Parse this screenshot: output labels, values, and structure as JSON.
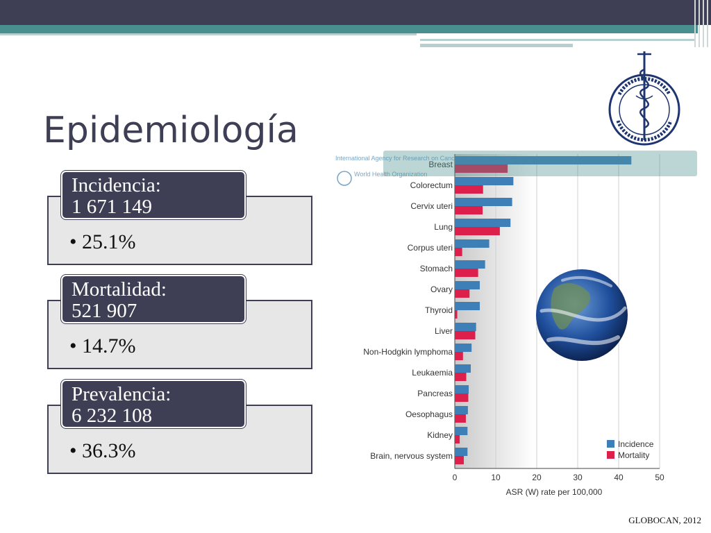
{
  "slide": {
    "title": "Epidemiología",
    "footer": "GLOBOCAN, 2012"
  },
  "logo": {
    "text": "INSTITUTO NACIONAL DE CANCEROLOGIA México"
  },
  "blocks": [
    {
      "label": "Incidencia:",
      "value": "1 671 149",
      "bullet": "•",
      "percent": "25.1%"
    },
    {
      "label": "Mortalidad:",
      "value": "521 907",
      "bullet": "•",
      "percent": "14.7%"
    },
    {
      "label": "Prevalencia:",
      "value": "6 232 108",
      "bullet": "•",
      "percent": "36.3%"
    }
  ],
  "chart_header": {
    "agency": "International Agency for Research on Cancer",
    "who": "World Health Organization"
  },
  "colors": {
    "incidence": "#3f7fb8",
    "mortality": "#dc1f4b",
    "accent": "#3e3f54",
    "teal": "#4a8f8f"
  },
  "chart_data": {
    "type": "bar",
    "orientation": "horizontal",
    "categories": [
      "Breast",
      "Colorectum",
      "Cervix uteri",
      "Lung",
      "Corpus uteri",
      "Stomach",
      "Ovary",
      "Thyroid",
      "Liver",
      "Non-Hodgkin lymphoma",
      "Leukaemia",
      "Pancreas",
      "Oesophagus",
      "Kidney",
      "Brain, nervous system"
    ],
    "series": [
      {
        "name": "Incidence",
        "values": [
          43.1,
          14.3,
          14.0,
          13.6,
          8.4,
          7.4,
          6.1,
          6.1,
          5.2,
          4.1,
          3.9,
          3.4,
          3.2,
          3.1,
          3.1
        ]
      },
      {
        "name": "Mortality",
        "values": [
          12.9,
          6.9,
          6.8,
          11.0,
          1.8,
          5.7,
          3.6,
          0.6,
          5.0,
          2.0,
          2.8,
          3.3,
          2.7,
          1.2,
          2.2
        ]
      }
    ],
    "xticks": [
      "0",
      "10",
      "20",
      "30",
      "40",
      "50"
    ],
    "xlim": [
      0,
      50
    ],
    "xlabel": "ASR (W) rate per 100,000",
    "legend_position": "bottom-right",
    "grid": true
  }
}
